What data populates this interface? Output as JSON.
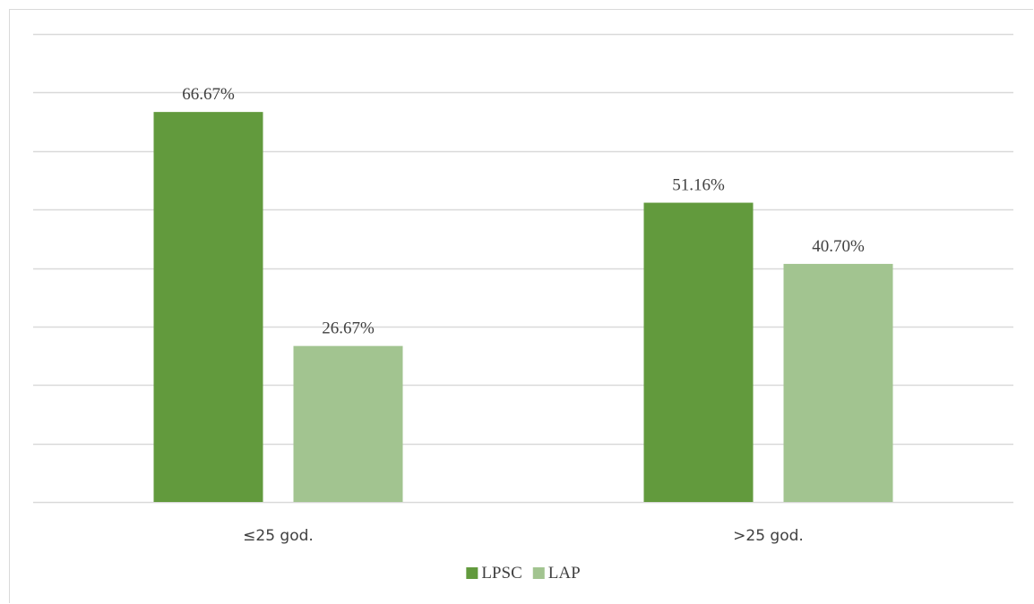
{
  "chart_data": {
    "type": "bar",
    "categories": [
      "≤25 god.",
      ">25 god."
    ],
    "series": [
      {
        "name": "LPSC",
        "values": [
          66.67,
          51.16
        ],
        "labels": [
          "66.67%",
          "51.16%"
        ],
        "color": "#629a3d"
      },
      {
        "name": "LAP",
        "values": [
          26.67,
          40.7
        ],
        "labels": [
          "26.67%",
          "40.70%"
        ],
        "color": "#a2c490"
      }
    ],
    "ylim": [
      0,
      80
    ],
    "y_gridline_step": 10,
    "grid": true,
    "y_tick_labels_shown": false,
    "legend_position": "bottom"
  }
}
